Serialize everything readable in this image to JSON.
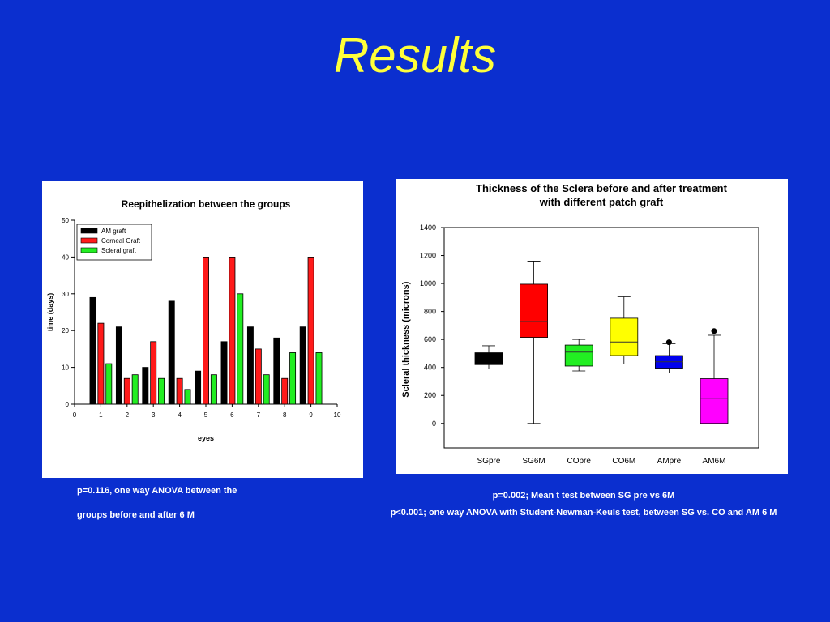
{
  "page": {
    "title": "Results"
  },
  "chart_data": [
    {
      "type": "bar",
      "title": "Reepithelization between the groups",
      "xlabel": "eyes",
      "ylabel": "time (days)",
      "xlim": [
        0,
        10
      ],
      "ylim": [
        0,
        50
      ],
      "xticks": [
        0,
        1,
        2,
        3,
        4,
        5,
        6,
        7,
        8,
        9,
        10
      ],
      "yticks": [
        0,
        10,
        20,
        30,
        40,
        50
      ],
      "x": [
        1,
        2,
        3,
        4,
        5,
        6,
        7,
        8,
        9
      ],
      "legend_position": "top-left",
      "series": [
        {
          "name": "AM graft",
          "color": "#000000",
          "values": [
            29,
            21,
            10,
            28,
            9,
            17,
            21,
            18,
            21
          ]
        },
        {
          "name": "Corneal Graft",
          "color": "#ff1a1a",
          "values": [
            22,
            7,
            17,
            7,
            40,
            40,
            15,
            7,
            40
          ]
        },
        {
          "name": "Scleral graft",
          "color": "#22ee22",
          "values": [
            11,
            8,
            7,
            4,
            8,
            30,
            8,
            14,
            14
          ]
        }
      ]
    },
    {
      "type": "box",
      "title": "Thickness of the Sclera before and after treatment\nwith different patch graft",
      "xlabel": "",
      "ylabel": "Scleral thickness (microns)",
      "ylim": [
        -175,
        1400
      ],
      "yticks": [
        0,
        200,
        400,
        600,
        800,
        1000,
        1200,
        1400
      ],
      "categories": [
        "SGpre",
        "SG6M",
        "COpre",
        "CO6M",
        "AMpre",
        "AM6M"
      ],
      "boxes": [
        {
          "name": "SGpre",
          "color": "#000000",
          "min": 390,
          "q1": 420,
          "median": 430,
          "q3": 505,
          "max": 555
        },
        {
          "name": "SG6M",
          "color": "#ff0000",
          "min": 0,
          "q1": 615,
          "median": 728,
          "q3": 995,
          "max": 1160
        },
        {
          "name": "COpre",
          "color": "#22ee22",
          "min": 375,
          "q1": 410,
          "median": 510,
          "q3": 560,
          "max": 600
        },
        {
          "name": "CO6M",
          "color": "#ffff00",
          "min": 425,
          "q1": 485,
          "median": 582,
          "q3": 752,
          "max": 905
        },
        {
          "name": "AMpre",
          "color": "#0000ee",
          "min": 360,
          "q1": 395,
          "median": 440,
          "q3": 485,
          "max": 570,
          "outliers": [
            580
          ]
        },
        {
          "name": "AM6M",
          "color": "#ff00ff",
          "min": 0,
          "q1": 0,
          "median": 180,
          "q3": 320,
          "max": 630,
          "outliers": [
            660
          ]
        }
      ]
    }
  ],
  "notes": {
    "left_line1": "p=0.116,  one way ANOVA between the",
    "left_line2": "groups before and after 6 M",
    "right_line1": "p=0.002; Mean t test between SG pre vs 6M",
    "right_line2": "p<0.001; one way ANOVA with Student-Newman-Keuls test, between SG vs. CO and AM 6 M"
  }
}
